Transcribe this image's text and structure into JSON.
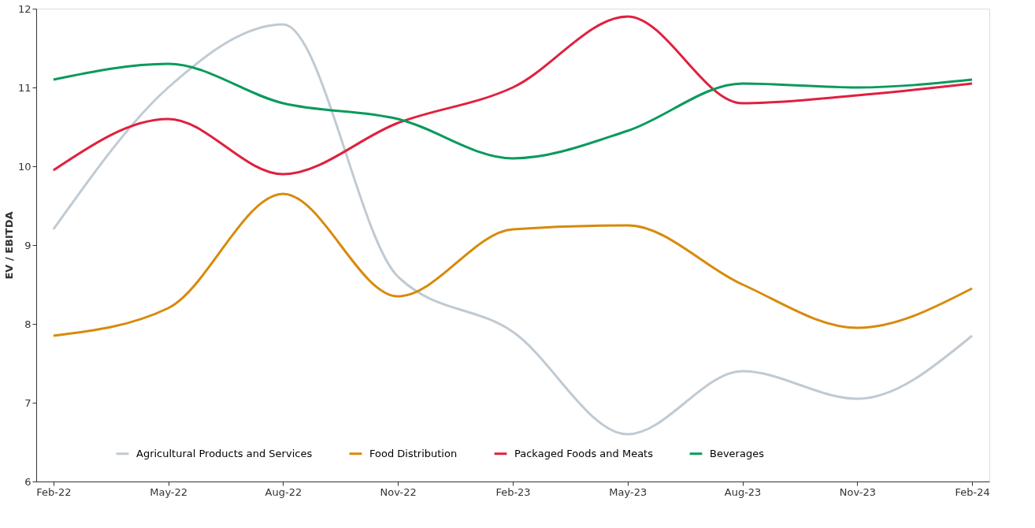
{
  "chart_data": {
    "type": "line",
    "ylabel": "EV / EBITDA",
    "categories": [
      "Feb-22",
      "May-22",
      "Aug-22",
      "Nov-22",
      "Feb-23",
      "May-23",
      "Aug-23",
      "Nov-23",
      "Feb-24"
    ],
    "series": [
      {
        "name": "Agricultural Products and Services",
        "color": "#c0cad3",
        "values": [
          9.2,
          11.0,
          11.8,
          8.6,
          7.9,
          6.6,
          7.4,
          7.05,
          7.85
        ]
      },
      {
        "name": "Food Distribution",
        "color": "#d88a0b",
        "values": [
          7.85,
          8.2,
          9.65,
          8.35,
          9.2,
          9.25,
          8.5,
          7.95,
          8.45
        ]
      },
      {
        "name": "Packaged Foods and Meats",
        "color": "#e0203f",
        "values": [
          9.95,
          10.6,
          9.9,
          10.55,
          11.0,
          11.9,
          10.8,
          10.9,
          11.05
        ]
      },
      {
        "name": "Beverages",
        "color": "#0a9a5c",
        "values": [
          11.1,
          11.3,
          10.8,
          10.6,
          10.1,
          10.45,
          11.05,
          11.0,
          11.1
        ]
      }
    ],
    "ylim": [
      6,
      12
    ],
    "yticks": [
      6,
      7,
      8,
      9,
      10,
      11,
      12
    ],
    "grid": false,
    "legend": "bottom",
    "marker": "none",
    "line_style": "solid"
  }
}
